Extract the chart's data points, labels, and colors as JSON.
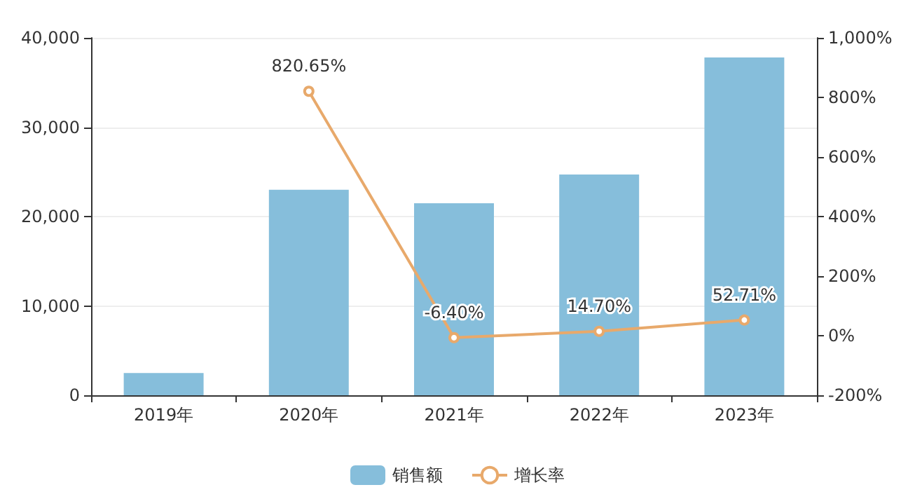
{
  "chart_data": {
    "type": "bar",
    "categories": [
      "2019年",
      "2020年",
      "2021年",
      "2022年",
      "2023年"
    ],
    "series": [
      {
        "name": "销售额",
        "color": "#86bedb",
        "values": [
          2500,
          23000,
          21500,
          24700,
          37800
        ]
      },
      {
        "name": "增长率",
        "type": "line",
        "axis": "y2",
        "color": "#e8a96b",
        "marker": "circle",
        "values": [
          null,
          820.65,
          -6.4,
          14.7,
          52.71
        ],
        "value_labels": [
          null,
          "820.65%",
          "-6.40%",
          "14.70%",
          "52.71%"
        ]
      }
    ],
    "ylim": [
      0,
      40000
    ],
    "yticks": [
      {
        "value": 0,
        "label": "0"
      },
      {
        "value": 10000,
        "label": "10,000"
      },
      {
        "value": 20000,
        "label": "20,000"
      },
      {
        "value": 30000,
        "label": "30,000"
      },
      {
        "value": 40000,
        "label": "40,000"
      }
    ],
    "y2lim": [
      -200,
      1000
    ],
    "y2ticks": [
      {
        "value": -200,
        "label": "-200%"
      },
      {
        "value": 0,
        "label": "0%"
      },
      {
        "value": 200,
        "label": "200%"
      },
      {
        "value": 400,
        "label": "400%"
      },
      {
        "value": 600,
        "label": "600%"
      },
      {
        "value": 800,
        "label": "800%"
      },
      {
        "value": 1000,
        "label": "1,000%"
      }
    ],
    "grid": "y",
    "legend": "bottom"
  }
}
